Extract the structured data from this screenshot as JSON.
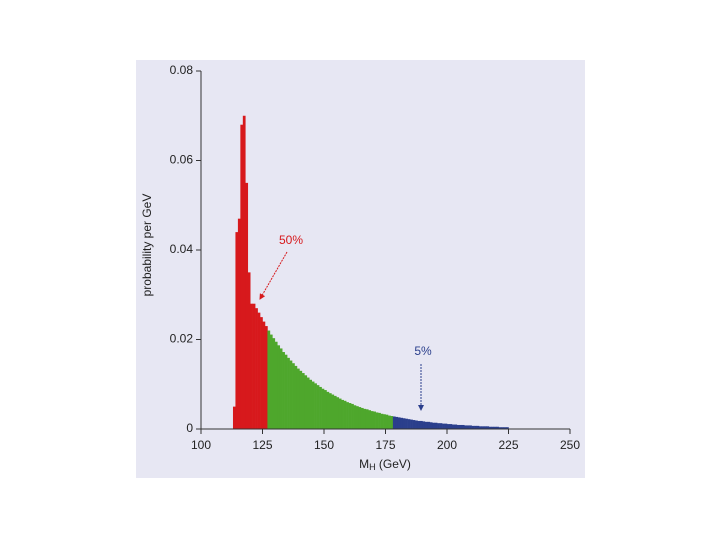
{
  "chart_data": {
    "type": "histogram",
    "ylabel": "probability per GeV",
    "xlabel": {
      "main": "M",
      "sub": "H",
      "unit": " (GeV)"
    },
    "xlim": [
      100,
      250
    ],
    "xticks": [
      100,
      125,
      150,
      175,
      200,
      225,
      250
    ],
    "ylim": [
      0,
      0.08
    ],
    "yticks": [
      0,
      0.02,
      0.04,
      0.06,
      0.08
    ],
    "series": [
      {
        "color": "#d7191c",
        "bins": [
          113,
          114,
          115,
          116,
          117,
          118,
          119,
          120,
          121,
          122,
          123,
          124,
          125,
          126,
          127
        ],
        "values": [
          0.005,
          0.044,
          0.047,
          0.068,
          0.07,
          0.055,
          0.035,
          0.028,
          0.028,
          0.027,
          0.026,
          0.025,
          0.024,
          0.023
        ]
      },
      {
        "color": "#4ea72c",
        "bins": [
          127,
          128,
          129,
          130,
          131,
          132,
          133,
          134,
          135,
          136,
          137,
          138,
          139,
          140,
          141,
          142,
          143,
          144,
          145,
          146,
          147,
          148,
          149,
          150,
          151,
          152,
          153,
          154,
          155,
          156,
          157,
          158,
          159,
          160,
          161,
          162,
          163,
          164,
          165,
          166,
          167,
          168,
          169,
          170,
          171,
          172,
          173,
          174,
          175,
          176,
          177,
          178
        ],
        "values": [
          0.022,
          0.0211,
          0.0203,
          0.0195,
          0.0187,
          0.018,
          0.0172,
          0.0166,
          0.0159,
          0.0153,
          0.0147,
          0.0141,
          0.0135,
          0.013,
          0.0125,
          0.012,
          0.0115,
          0.011,
          0.0106,
          0.0102,
          0.0098,
          0.0094,
          0.009,
          0.0087,
          0.0083,
          0.008,
          0.0077,
          0.0074,
          0.0071,
          0.0068,
          0.0065,
          0.0063,
          0.006,
          0.0058,
          0.0056,
          0.0053,
          0.0051,
          0.0049,
          0.0047,
          0.0045,
          0.0044,
          0.0042,
          0.004,
          0.0039,
          0.0037,
          0.0036,
          0.0034,
          0.0033,
          0.0032,
          0.003,
          0.0029
        ]
      },
      {
        "color": "#2b3f8c",
        "bins": [
          178,
          179,
          180,
          181,
          182,
          183,
          184,
          185,
          186,
          187,
          188,
          189,
          190,
          191,
          192,
          193,
          194,
          195,
          196,
          197,
          198,
          199,
          200,
          201,
          202,
          203,
          204,
          205,
          206,
          207,
          208,
          209,
          210,
          211,
          212,
          213,
          214,
          215,
          216,
          217,
          218,
          219,
          220,
          221,
          222,
          223,
          224,
          225
        ],
        "values": [
          0.0028,
          0.0027,
          0.0026,
          0.0025,
          0.0024,
          0.0023,
          0.0022,
          0.0021,
          0.002,
          0.0019,
          0.0018,
          0.0018,
          0.0017,
          0.0016,
          0.0016,
          0.0015,
          0.0014,
          0.0014,
          0.0013,
          0.0013,
          0.0012,
          0.0012,
          0.0011,
          0.0011,
          0.001,
          0.001,
          0.0009,
          0.0009,
          0.0009,
          0.0008,
          0.0008,
          0.0008,
          0.0007,
          0.0007,
          0.0007,
          0.0006,
          0.0006,
          0.0006,
          0.0006,
          0.0005,
          0.0005,
          0.0005,
          0.0005,
          0.0004,
          0.0004,
          0.0004,
          0.0004
        ]
      }
    ],
    "annotations": [
      {
        "text": "50%",
        "color": "#d7191c"
      },
      {
        "text": "5%",
        "color": "#2b3f8c"
      }
    ]
  }
}
